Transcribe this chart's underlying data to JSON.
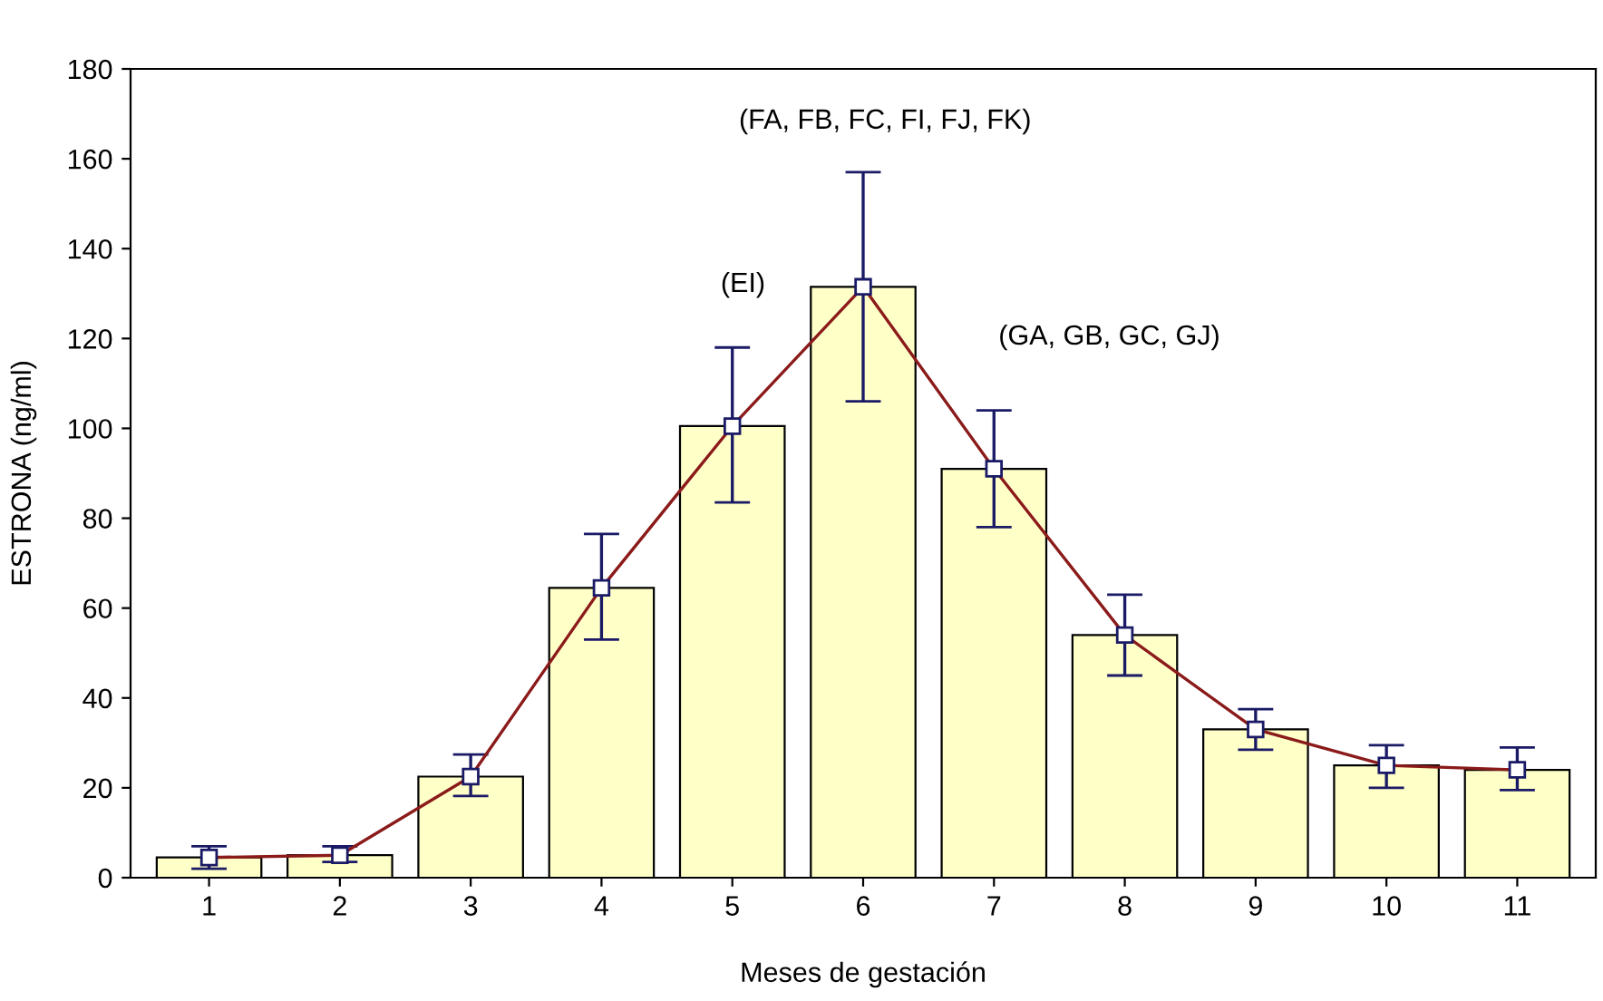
{
  "chart_data": {
    "type": "bar",
    "xlabel": "Meses de gestación",
    "ylabel": "ESTRONA (ng/ml)",
    "categories": [
      "1",
      "2",
      "3",
      "4",
      "5",
      "6",
      "7",
      "8",
      "9",
      "10",
      "11"
    ],
    "series": [
      {
        "color": "#ffffc8",
        "values": [
          4.5,
          5,
          22.5,
          64.5,
          100.5,
          131.5,
          91,
          54,
          33,
          25,
          24
        ],
        "errors": [
          [
            2,
            7
          ],
          [
            3.5,
            7
          ],
          [
            18.2,
            27.4
          ],
          [
            53,
            76.5
          ],
          [
            83.5,
            118
          ],
          [
            106,
            157
          ],
          [
            78,
            104
          ],
          [
            45,
            63
          ],
          [
            28.5,
            37.5
          ],
          [
            20,
            29.5
          ],
          [
            19.5,
            29
          ]
        ]
      },
      {
        "type": "line",
        "color": "#8b1a1a",
        "values": [
          4.5,
          5,
          22.5,
          64.5,
          100.5,
          131.5,
          91,
          54,
          33,
          25,
          24
        ]
      }
    ],
    "marker": "square",
    "ylim": [
      0,
      180
    ],
    "yticks": [
      0,
      20,
      40,
      60,
      80,
      100,
      120,
      140,
      160,
      180
    ],
    "grid": false,
    "annotations": [
      "(EI)",
      "(FA, FB, FC, FI, FJ, FK)",
      "(GA, GB, GC, GJ)"
    ]
  }
}
